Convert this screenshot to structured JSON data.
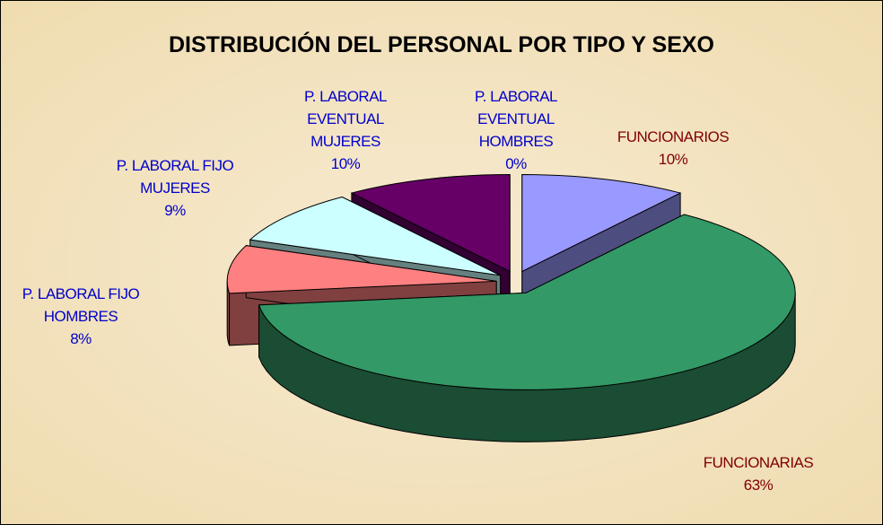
{
  "chart_data": {
    "type": "pie",
    "title": "DISTRIBUCIÓN  DEL PERSONAL POR TIPO Y SEXO",
    "categories": [
      "FUNCIONARIOS",
      "FUNCIONARIAS",
      "P. LABORAL FIJO HOMBRES",
      "P. LABORAL FIJO MUJERES",
      "P. LABORAL EVENTUAL MUJERES",
      "P. LABORAL EVENTUAL HOMBRES"
    ],
    "values": [
      10,
      63,
      8,
      9,
      10,
      0
    ],
    "value_labels": [
      "10%",
      "63%",
      "8%",
      "9%",
      "10%",
      "0%"
    ],
    "colors": [
      "#9999ff",
      "#339966",
      "#ff8080",
      "#ccffff",
      "#660066",
      "#ffffff"
    ],
    "label_colors": [
      "#800000",
      "#800000",
      "#0000cc",
      "#0000cc",
      "#0000cc",
      "#0000cc"
    ]
  }
}
